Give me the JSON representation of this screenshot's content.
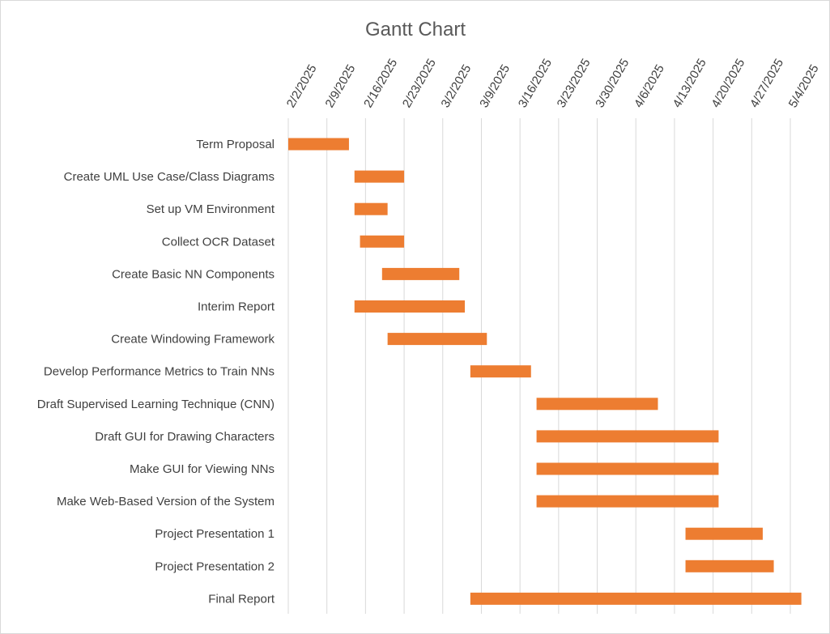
{
  "chart_data": {
    "type": "bar",
    "orientation": "horizontal",
    "style": "gantt",
    "title": "Gantt Chart",
    "xlabel": "",
    "ylabel": "",
    "x_axis_position": "top",
    "x_ticks": [
      "2/2/2025",
      "2/9/2025",
      "2/16/2025",
      "2/23/2025",
      "3/2/2025",
      "3/9/2025",
      "3/16/2025",
      "3/23/2025",
      "3/30/2025",
      "4/6/2025",
      "4/13/2025",
      "4/20/2025",
      "4/27/2025",
      "5/4/2025"
    ],
    "xlim": [
      "2/2/2025",
      "5/4/2025"
    ],
    "grid": "vertical",
    "legend": "none",
    "bar_color": "#ed7d31",
    "tasks": [
      {
        "name": "Term Proposal",
        "start": "2/2/2025",
        "end": "2/13/2025"
      },
      {
        "name": "Create UML Use Case/Class Diagrams",
        "start": "2/14/2025",
        "end": "2/23/2025"
      },
      {
        "name": "Set up VM Environment",
        "start": "2/14/2025",
        "end": "2/20/2025"
      },
      {
        "name": "Collect OCR Dataset",
        "start": "2/15/2025",
        "end": "2/23/2025"
      },
      {
        "name": "Create Basic NN Components",
        "start": "2/19/2025",
        "end": "3/5/2025"
      },
      {
        "name": "Interim Report",
        "start": "2/14/2025",
        "end": "3/6/2025"
      },
      {
        "name": "Create Windowing Framework",
        "start": "2/20/2025",
        "end": "3/10/2025"
      },
      {
        "name": "Develop Performance Metrics to Train NNs",
        "start": "3/7/2025",
        "end": "3/18/2025"
      },
      {
        "name": "Draft Supervised Learning Technique (CNN)",
        "start": "3/19/2025",
        "end": "4/10/2025"
      },
      {
        "name": "Draft GUI for Drawing Characters",
        "start": "3/19/2025",
        "end": "4/21/2025"
      },
      {
        "name": "Make GUI for Viewing NNs",
        "start": "3/19/2025",
        "end": "4/21/2025"
      },
      {
        "name": "Make Web-Based Version of the System",
        "start": "3/19/2025",
        "end": "4/21/2025"
      },
      {
        "name": "Project Presentation 1",
        "start": "4/15/2025",
        "end": "4/29/2025"
      },
      {
        "name": "Project Presentation 2",
        "start": "4/15/2025",
        "end": "5/1/2025"
      },
      {
        "name": "Final Report",
        "start": "3/7/2025",
        "end": "5/6/2025"
      }
    ]
  }
}
